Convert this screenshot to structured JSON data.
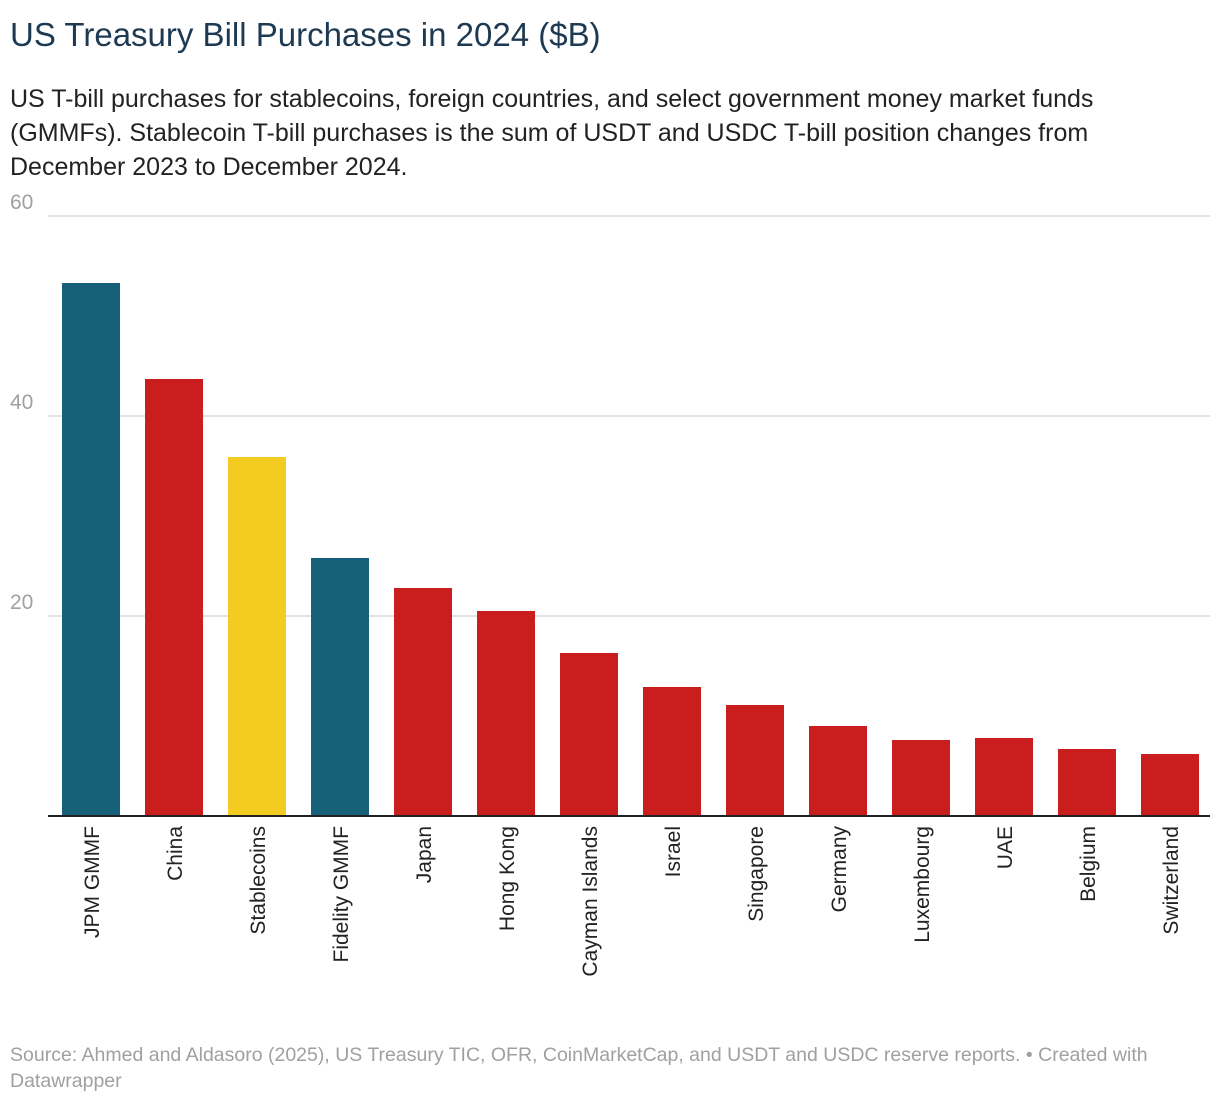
{
  "title": "US Treasury Bill Purchases in 2024 ($B)",
  "subtitle": "US T-bill purchases for stablecoins, foreign countries, and select government money market funds (GMMFs). Stablecoin T-bill purchases is the sum of USDT and USDC T-bill position changes from December 2023 to December 2024.",
  "footer": "Source: Ahmed and Aldasoro (2025), US Treasury TIC, OFR, CoinMarketCap, and USDT and USDC reserve reports. • Created with Datawrapper",
  "chart_data": {
    "type": "bar",
    "categories": [
      "JPM GMMF",
      "China",
      "Stablecoins",
      "Fidelity GMMF",
      "Japan",
      "Hong Kong",
      "Cayman Islands",
      "Israel",
      "Singapore",
      "Germany",
      "Luxembourg",
      "UAE",
      "Belgium",
      "Switzerland"
    ],
    "values": [
      53.3,
      43.7,
      35.9,
      25.8,
      22.8,
      20.5,
      16.3,
      12.9,
      11.1,
      9.0,
      7.6,
      7.8,
      6.7,
      6.2
    ],
    "colors": [
      "#17607a",
      "#c91d1e",
      "#f3cb21",
      "#17607a",
      "#c91d1e",
      "#c91d1e",
      "#c91d1e",
      "#c91d1e",
      "#c91d1e",
      "#c91d1e",
      "#c91d1e",
      "#c91d1e",
      "#c91d1e",
      "#c91d1e"
    ],
    "ylim": [
      0,
      60
    ],
    "yticks": [
      20,
      40,
      60
    ],
    "grid": true,
    "xlabel": "",
    "ylabel": ""
  }
}
